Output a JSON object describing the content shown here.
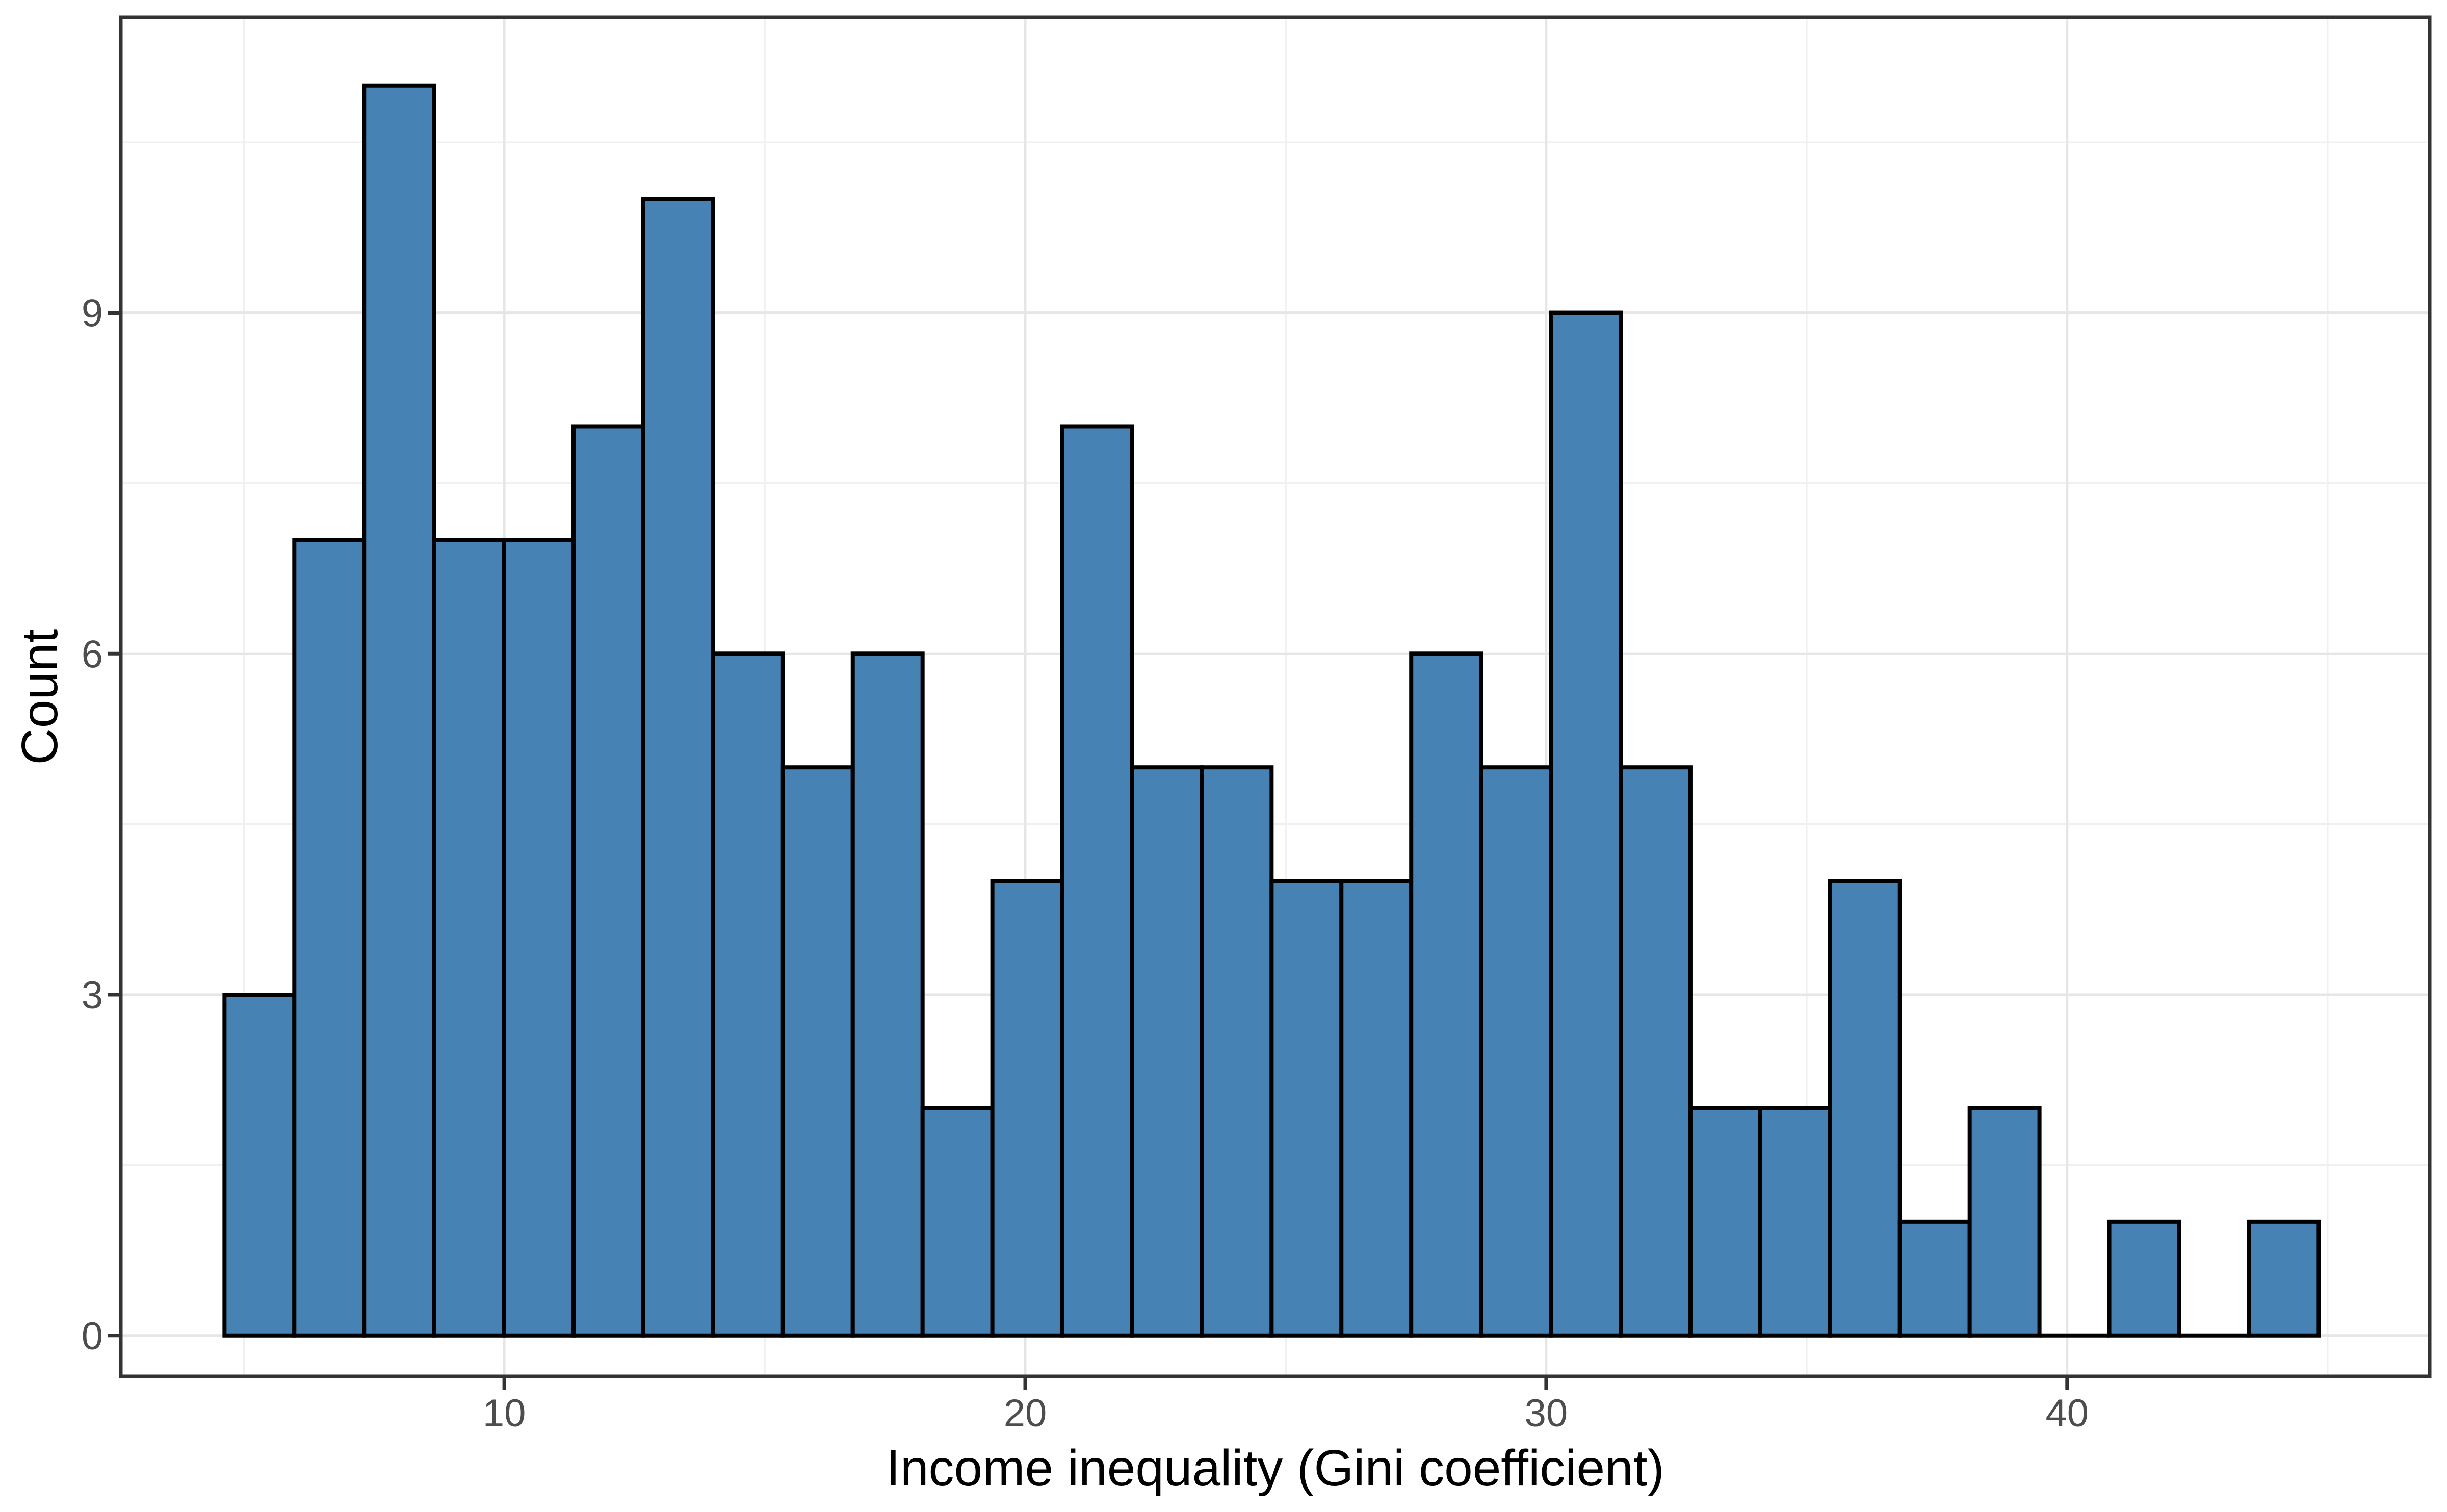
{
  "chart_data": {
    "type": "bar",
    "subtype": "histogram",
    "title": "",
    "xlabel": "Income inequality (Gini coefficient)",
    "ylabel": "Count",
    "bin_start": 4.63,
    "bin_width": 1.34,
    "counts": [
      3,
      7,
      11,
      7,
      7,
      8,
      10,
      6,
      5,
      6,
      2,
      4,
      8,
      5,
      5,
      4,
      4,
      6,
      5,
      9,
      5,
      2,
      2,
      4,
      1,
      2,
      0,
      1,
      0,
      1
    ],
    "x_ticks": [
      10,
      20,
      30,
      40
    ],
    "y_ticks": [
      0,
      3,
      6,
      9
    ],
    "x_minor_ticks": [
      5,
      15,
      25,
      35,
      45
    ],
    "y_minor_ticks": [
      1.5,
      4.5,
      7.5,
      10.5
    ],
    "xlim": [
      2.64,
      46.96
    ],
    "ylim": [
      -0.36,
      11.6
    ],
    "grid": "major and minor, light gray on white",
    "legend_position": "none"
  },
  "colors": {
    "bar_fill": "#4682B4",
    "bar_stroke": "#000000",
    "grid_major": "#e6e6e6",
    "grid_minor": "#f0f0f0",
    "panel_border": "#333333",
    "tick_mark": "#333333",
    "tick_label": "#4d4d4d",
    "axis_title": "#000000",
    "background": "#ffffff"
  }
}
